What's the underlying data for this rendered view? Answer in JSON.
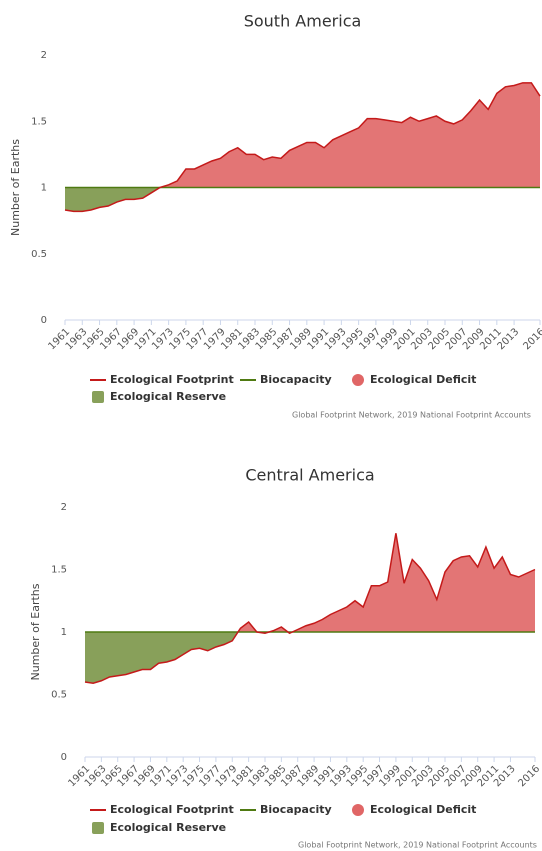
{
  "chart_data": [
    {
      "type": "area",
      "title": "South America",
      "y_label": "Number of Earths",
      "x": [
        1961,
        1962,
        1963,
        1964,
        1965,
        1966,
        1967,
        1968,
        1969,
        1970,
        1971,
        1972,
        1973,
        1974,
        1975,
        1976,
        1977,
        1978,
        1979,
        1980,
        1981,
        1982,
        1983,
        1984,
        1985,
        1986,
        1987,
        1988,
        1989,
        1990,
        1991,
        1992,
        1993,
        1994,
        1995,
        1996,
        1997,
        1998,
        1999,
        2000,
        2001,
        2002,
        2003,
        2004,
        2005,
        2006,
        2007,
        2008,
        2009,
        2010,
        2011,
        2012,
        2013,
        2014,
        2015,
        2016
      ],
      "series": [
        {
          "name": "Ecological Footprint",
          "color": "#c41a1a",
          "values": [
            0.83,
            0.82,
            0.82,
            0.83,
            0.85,
            0.86,
            0.89,
            0.91,
            0.91,
            0.92,
            0.96,
            1.0,
            1.02,
            1.05,
            1.14,
            1.14,
            1.17,
            1.2,
            1.22,
            1.27,
            1.3,
            1.25,
            1.25,
            1.21,
            1.23,
            1.22,
            1.28,
            1.31,
            1.34,
            1.34,
            1.3,
            1.36,
            1.39,
            1.42,
            1.45,
            1.52,
            1.52,
            1.51,
            1.5,
            1.49,
            1.53,
            1.5,
            1.52,
            1.54,
            1.5,
            1.48,
            1.51,
            1.58,
            1.66,
            1.59,
            1.71,
            1.76,
            1.77,
            1.79,
            1.79,
            1.69
          ]
        },
        {
          "name": "Biocapacity",
          "color": "#4f7a12",
          "values": [
            1,
            1,
            1,
            1,
            1,
            1,
            1,
            1,
            1,
            1,
            1,
            1,
            1,
            1,
            1,
            1,
            1,
            1,
            1,
            1,
            1,
            1,
            1,
            1,
            1,
            1,
            1,
            1,
            1,
            1,
            1,
            1,
            1,
            1,
            1,
            1,
            1,
            1,
            1,
            1,
            1,
            1,
            1,
            1,
            1,
            1,
            1,
            1,
            1,
            1,
            1,
            1,
            1,
            1,
            1,
            1
          ]
        }
      ],
      "areas": [
        {
          "name": "Ecological Deficit",
          "color": "#e06666"
        },
        {
          "name": "Ecological Reserve",
          "color": "#88a05a"
        }
      ],
      "xlim": [
        1961,
        2016
      ],
      "xticks": [
        1961,
        1963,
        1965,
        1967,
        1969,
        1971,
        1973,
        1975,
        1977,
        1979,
        1981,
        1983,
        1985,
        1987,
        1989,
        1991,
        1993,
        1995,
        1997,
        1999,
        2001,
        2003,
        2005,
        2007,
        2009,
        2011,
        2013,
        2016
      ],
      "ylim": [
        0,
        2
      ],
      "yticks": [
        0,
        0.5,
        1,
        1.5,
        2
      ],
      "source": "Global Footprint Network, 2019 National Footprint Accounts"
    },
    {
      "type": "area",
      "title": "Central America",
      "y_label": "Number of Earths",
      "x": [
        1961,
        1962,
        1963,
        1964,
        1965,
        1966,
        1967,
        1968,
        1969,
        1970,
        1971,
        1972,
        1973,
        1974,
        1975,
        1976,
        1977,
        1978,
        1979,
        1980,
        1981,
        1982,
        1983,
        1984,
        1985,
        1986,
        1987,
        1988,
        1989,
        1990,
        1991,
        1992,
        1993,
        1994,
        1995,
        1996,
        1997,
        1998,
        1999,
        2000,
        2001,
        2002,
        2003,
        2004,
        2005,
        2006,
        2007,
        2008,
        2009,
        2010,
        2011,
        2012,
        2013,
        2014,
        2015,
        2016
      ],
      "series": [
        {
          "name": "Ecological Footprint",
          "color": "#c41a1a",
          "values": [
            0.6,
            0.59,
            0.61,
            0.64,
            0.65,
            0.66,
            0.68,
            0.7,
            0.7,
            0.75,
            0.76,
            0.78,
            0.82,
            0.86,
            0.87,
            0.85,
            0.88,
            0.9,
            0.93,
            1.03,
            1.08,
            1.0,
            0.99,
            1.01,
            1.04,
            0.99,
            1.02,
            1.05,
            1.07,
            1.1,
            1.14,
            1.17,
            1.2,
            1.25,
            1.2,
            1.37,
            1.37,
            1.4,
            1.79,
            1.39,
            1.58,
            1.51,
            1.41,
            1.26,
            1.48,
            1.57,
            1.6,
            1.61,
            1.52,
            1.68,
            1.51,
            1.6,
            1.46,
            1.44,
            1.47,
            1.5
          ]
        },
        {
          "name": "Biocapacity",
          "color": "#4f7a12",
          "values": [
            1,
            1,
            1,
            1,
            1,
            1,
            1,
            1,
            1,
            1,
            1,
            1,
            1,
            1,
            1,
            1,
            1,
            1,
            1,
            1,
            1,
            1,
            1,
            1,
            1,
            1,
            1,
            1,
            1,
            1,
            1,
            1,
            1,
            1,
            1,
            1,
            1,
            1,
            1,
            1,
            1,
            1,
            1,
            1,
            1,
            1,
            1,
            1,
            1,
            1,
            1,
            1,
            1,
            1,
            1,
            1
          ]
        }
      ],
      "areas": [
        {
          "name": "Ecological Deficit",
          "color": "#e06666"
        },
        {
          "name": "Ecological Reserve",
          "color": "#88a05a"
        }
      ],
      "xlim": [
        1961,
        2016
      ],
      "xticks": [
        1961,
        1963,
        1965,
        1967,
        1969,
        1971,
        1973,
        1975,
        1977,
        1979,
        1981,
        1983,
        1985,
        1987,
        1989,
        1991,
        1993,
        1995,
        1997,
        1999,
        2001,
        2003,
        2005,
        2007,
        2009,
        2011,
        2013,
        2016
      ],
      "ylim": [
        0,
        2
      ],
      "yticks": [
        0,
        0.5,
        1,
        1.5,
        2
      ],
      "source": "Global Footprint Network, 2019 National Footprint Accounts"
    }
  ]
}
